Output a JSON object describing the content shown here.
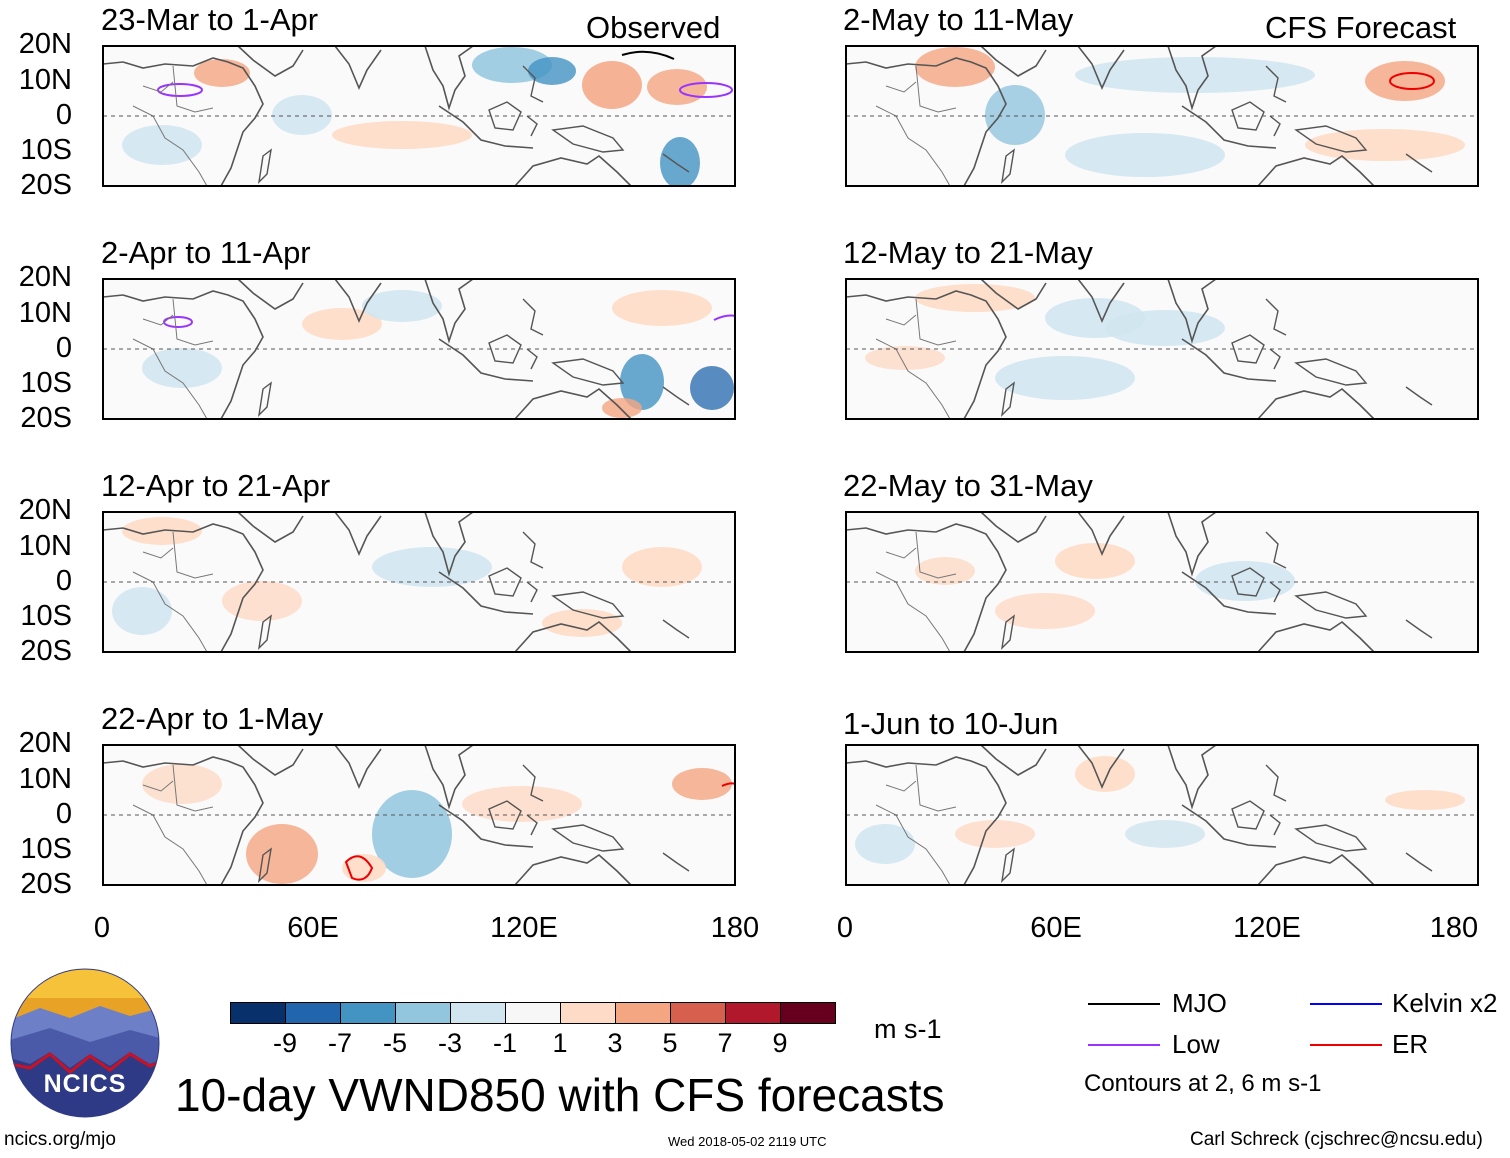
{
  "header": {
    "observed_label": "Observed",
    "forecast_label": "CFS Forecast"
  },
  "panels_observed": [
    {
      "title": "23-Mar to 1-Apr"
    },
    {
      "title": "2-Apr to 11-Apr"
    },
    {
      "title": "12-Apr to 21-Apr"
    },
    {
      "title": "22-Apr to 1-May"
    }
  ],
  "panels_forecast": [
    {
      "title": "2-May to 11-May"
    },
    {
      "title": "12-May to 21-May"
    },
    {
      "title": "22-May to 31-May"
    },
    {
      "title": "1-Jun to 10-Jun"
    }
  ],
  "axes": {
    "lat_labels": [
      "20N",
      "10N",
      "0",
      "10S",
      "20S"
    ],
    "lon_labels": [
      "0",
      "60E",
      "120E",
      "180"
    ]
  },
  "colorbar": {
    "colors": [
      "#08306b",
      "#2166ac",
      "#4393c3",
      "#92c5de",
      "#d1e5f0",
      "#f7f7f7",
      "#fddbc7",
      "#f4a582",
      "#d6604d",
      "#b2182b",
      "#67001f"
    ],
    "ticks": [
      "-9",
      "-7",
      "-5",
      "-3",
      "-1",
      "1",
      "3",
      "5",
      "7",
      "9"
    ],
    "units": "m s-1"
  },
  "legend": {
    "items": [
      {
        "label": "MJO",
        "color": "#000000"
      },
      {
        "label": "Low",
        "color": "#9933ff"
      },
      {
        "label": "Kelvin x2",
        "color": "#0000ff"
      },
      {
        "label": "ER",
        "color": "#ee0000"
      }
    ],
    "contours_note": "Contours at 2, 6 m s-1"
  },
  "footer": {
    "main_title": "10-day VWND850 with CFS forecasts",
    "logo_text": "NCICS",
    "url": "ncics.org/mjo",
    "timestamp": "Wed 2018-05-02 2119 UTC",
    "author": "Carl Schreck (cjschrec@ncsu.edu)"
  }
}
